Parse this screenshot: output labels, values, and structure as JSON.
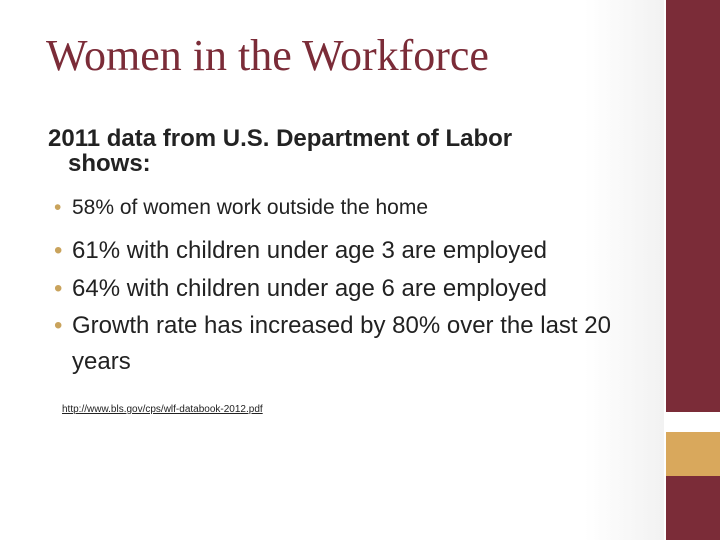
{
  "slide": {
    "title": "Women in the Workforce",
    "subtitle_line1": "2011 data from U.S. Department of Labor",
    "subtitle_line2": "shows:",
    "bullet_symbol": "•",
    "bullets": [
      "58% of women work outside the home",
      "61% with children under age 3 are employed",
      "64% with children under age 6 are employed",
      "Growth rate has increased by 80% over the last 20 years"
    ],
    "source_link": "http://www.bls.gov/cps/wlf-databook-2012.pdf"
  },
  "colors": {
    "title": "#7b2c38",
    "side_bar": "#7b2c38",
    "side_accent": "#d9a85c",
    "bullet": "#c9a35c",
    "text": "#222222"
  }
}
